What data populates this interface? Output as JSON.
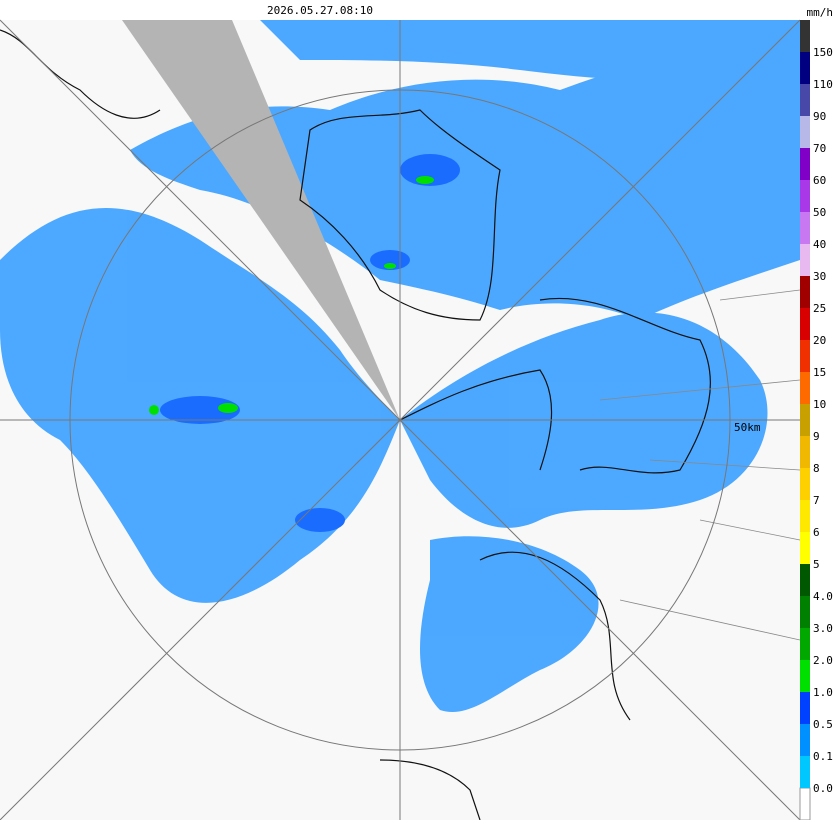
{
  "header": {
    "timestamp": "2026.05.27.08:10",
    "unit": "mm/h"
  },
  "map": {
    "range_label": "50km"
  },
  "legend": [
    {
      "label": "150",
      "color": "#333333"
    },
    {
      "label": "110",
      "color": "#000080"
    },
    {
      "label": "90",
      "color": "#4848a8"
    },
    {
      "label": "70",
      "color": "#b8b8e8"
    },
    {
      "label": "60",
      "color": "#8000c8"
    },
    {
      "label": "50",
      "color": "#a838e8"
    },
    {
      "label": "40",
      "color": "#c878f0"
    },
    {
      "label": "30",
      "color": "#e8b8f0"
    },
    {
      "label": "25",
      "color": "#a00000"
    },
    {
      "label": "20",
      "color": "#d80000"
    },
    {
      "label": "15",
      "color": "#f03000"
    },
    {
      "label": "10",
      "color": "#ff6a00"
    },
    {
      "label": "9",
      "color": "#c8a000"
    },
    {
      "label": "8",
      "color": "#f0b800"
    },
    {
      "label": "7",
      "color": "#ffd000"
    },
    {
      "label": "6",
      "color": "#ffe800"
    },
    {
      "label": "5",
      "color": "#ffff00"
    },
    {
      "label": "4.0",
      "color": "#005800"
    },
    {
      "label": "3.0",
      "color": "#008000"
    },
    {
      "label": "2.0",
      "color": "#00a800"
    },
    {
      "label": "1.0",
      "color": "#00e000"
    },
    {
      "label": "0.5",
      "color": "#0040ff"
    },
    {
      "label": "0.1",
      "color": "#0090ff"
    },
    {
      "label": "0.0",
      "color": "#00c8ff"
    }
  ]
}
